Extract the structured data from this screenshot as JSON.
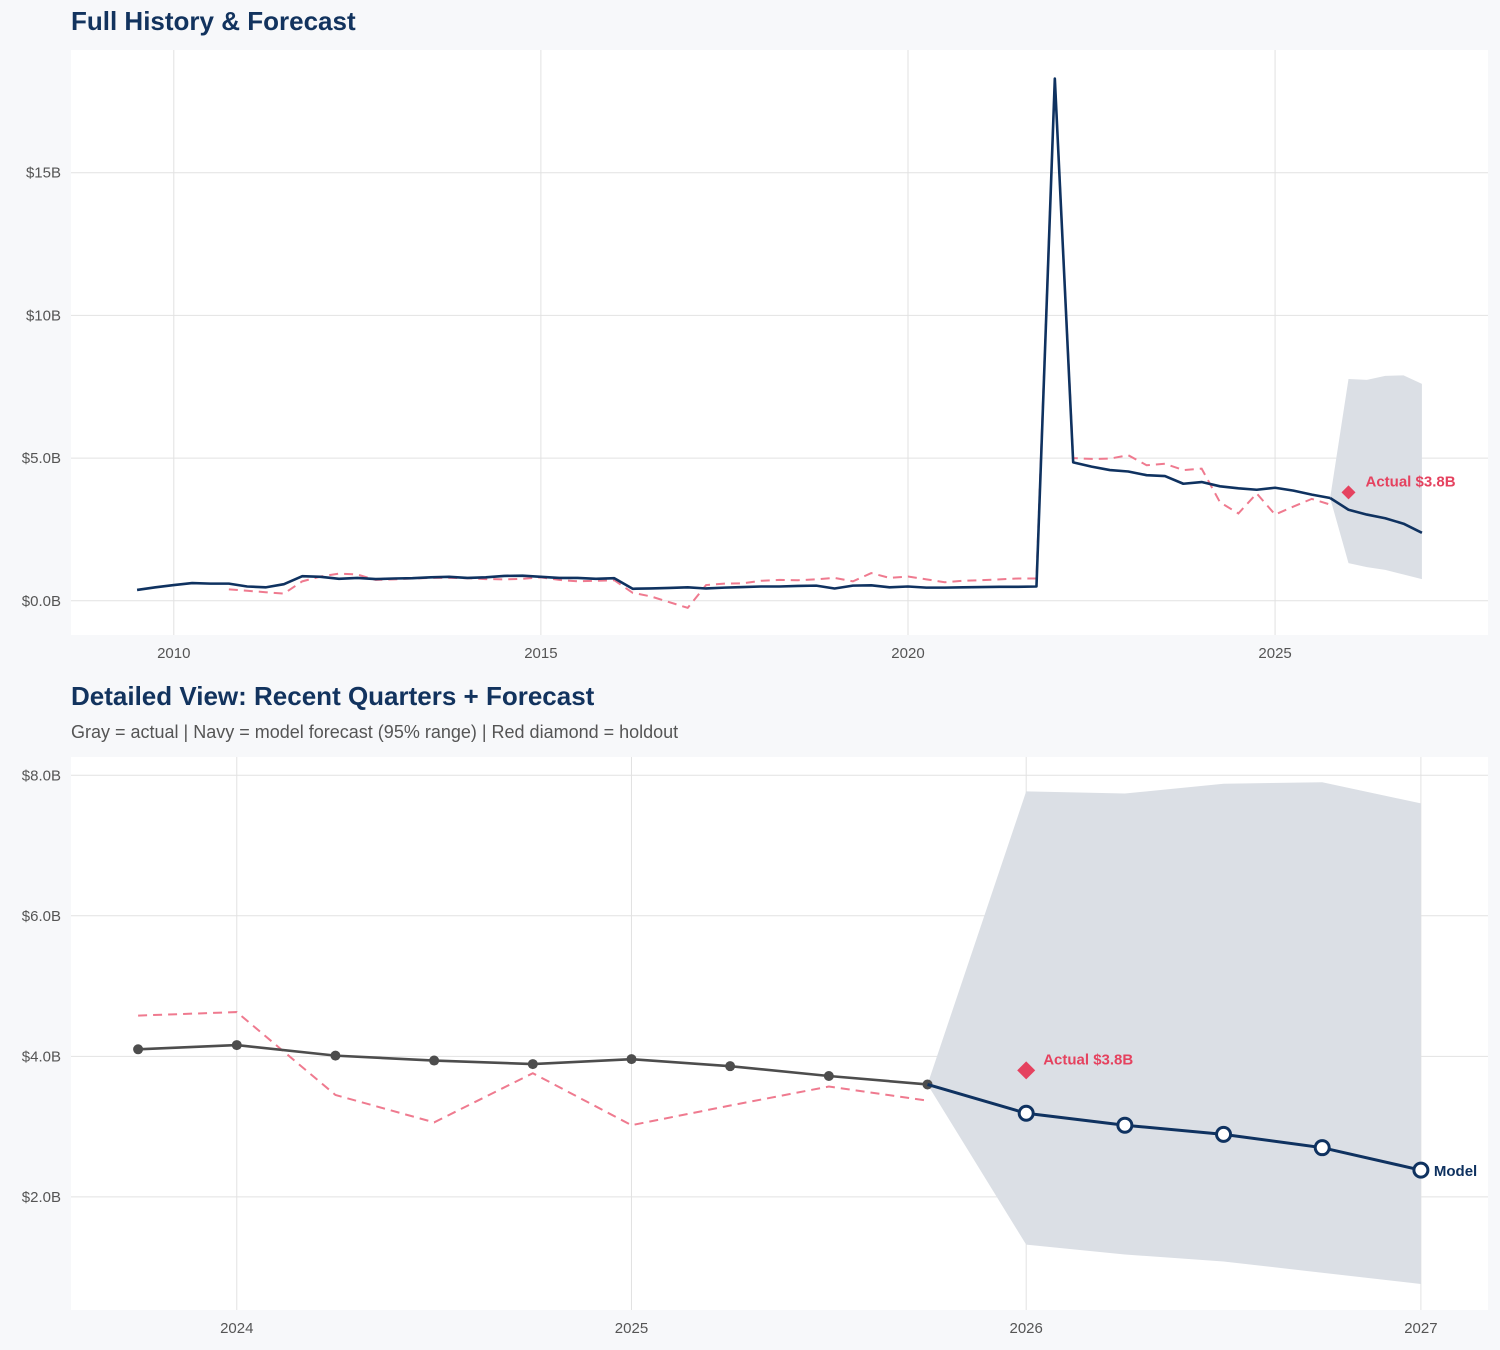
{
  "colors": {
    "navy": "#0f3260",
    "actual_gray": "#4d4d4d",
    "red": "#e5425f",
    "dashed_pink": "#ef7a8f",
    "band": "#dbdfe5",
    "grid": "#e2e2e2",
    "panel": "#ffffff",
    "background": "#f7f8fa"
  },
  "chart_data": [
    {
      "type": "line",
      "title": "Full History & Forecast",
      "xlim": [
        2008.6,
        2027.9
      ],
      "ylim": [
        -1.2,
        19.3
      ],
      "y_unit": "$B",
      "grid": true,
      "x_ticks": [
        2010,
        2015,
        2020,
        2025
      ],
      "x_tick_labels": [
        "2010",
        "2015",
        "2020",
        "2025"
      ],
      "y_ticks": [
        0,
        5,
        10,
        15
      ],
      "y_tick_labels": [
        "$0.0B",
        "$5.0B",
        "$10B",
        "$15B"
      ],
      "history": {
        "x_start": 2009.5,
        "x_step": 0.25,
        "values": [
          0.38,
          0.47,
          0.55,
          0.62,
          0.6,
          0.6,
          0.5,
          0.47,
          0.58,
          0.86,
          0.84,
          0.77,
          0.8,
          0.76,
          0.78,
          0.79,
          0.82,
          0.84,
          0.8,
          0.82,
          0.87,
          0.88,
          0.84,
          0.8,
          0.8,
          0.77,
          0.79,
          0.42,
          0.43,
          0.45,
          0.47,
          0.43,
          0.46,
          0.48,
          0.5,
          0.5,
          0.52,
          0.53,
          0.43,
          0.53,
          0.54,
          0.47,
          0.5,
          0.46,
          0.46,
          0.47,
          0.48,
          0.49,
          0.49,
          0.5,
          18.3,
          4.85,
          4.7,
          4.58,
          4.53,
          4.4,
          4.37,
          4.1,
          4.16,
          4.01,
          3.94,
          3.89,
          3.96,
          3.86,
          3.72,
          3.6
        ]
      },
      "dashed": {
        "x_start": 2010.75,
        "x_step": 0.25,
        "values": [
          0.4,
          0.35,
          0.3,
          0.25,
          0.68,
          0.85,
          0.95,
          0.92,
          0.73,
          0.75,
          0.78,
          0.8,
          0.8,
          0.79,
          0.76,
          0.75,
          0.77,
          0.82,
          0.73,
          0.68,
          0.7,
          0.72,
          0.28,
          0.15,
          -0.05,
          -0.25,
          0.55,
          0.6,
          0.61,
          0.7,
          0.73,
          0.72,
          0.75,
          0.8,
          0.68,
          0.97,
          0.8,
          0.85,
          0.75,
          0.65,
          0.7,
          0.72,
          0.75,
          0.78,
          0.78,
          18.3,
          5.0,
          4.97,
          4.98,
          5.1,
          4.75,
          4.8,
          4.58,
          4.63,
          3.45,
          3.06,
          3.76,
          3.02,
          3.3,
          3.57,
          3.37
        ]
      },
      "forecast": {
        "x": [
          2025.75,
          2026.0,
          2026.25,
          2026.5,
          2026.75,
          2027.0
        ],
        "values": [
          3.6,
          3.19,
          3.02,
          2.89,
          2.7,
          2.38
        ],
        "upper": [
          3.6,
          7.77,
          7.74,
          7.88,
          7.9,
          7.6
        ],
        "lower": [
          3.6,
          1.32,
          1.18,
          1.08,
          0.92,
          0.76
        ]
      },
      "holdout": {
        "x": 2026.0,
        "value": 3.8,
        "label": "Actual $3.8B"
      }
    },
    {
      "type": "line",
      "title": "Detailed View: Recent Quarters + Forecast",
      "subtitle": "Gray = actual  |  Navy = model forecast (95% range)  |  Red diamond = holdout",
      "xlim": [
        2023.58,
        2027.17
      ],
      "ylim": [
        0.39,
        8.26
      ],
      "y_unit": "$B",
      "grid": true,
      "x_ticks": [
        2024,
        2025,
        2026,
        2027
      ],
      "x_tick_labels": [
        "2024",
        "2025",
        "2026",
        "2027"
      ],
      "y_ticks": [
        2,
        4,
        6,
        8
      ],
      "y_tick_labels": [
        "$2.0B",
        "$4.0B",
        "$6.0B",
        "$8.0B"
      ],
      "actual": {
        "x": [
          2023.75,
          2024.0,
          2024.25,
          2024.5,
          2024.75,
          2025.0,
          2025.25,
          2025.5,
          2025.75
        ],
        "values": [
          4.1,
          4.16,
          4.01,
          3.94,
          3.89,
          3.96,
          3.86,
          3.72,
          3.6
        ]
      },
      "dashed": {
        "x": [
          2023.75,
          2024.0,
          2024.25,
          2024.5,
          2024.75,
          2025.0,
          2025.25,
          2025.5,
          2025.75
        ],
        "values": [
          4.58,
          4.63,
          3.45,
          3.06,
          3.76,
          3.02,
          3.3,
          3.57,
          3.37
        ]
      },
      "forecast": {
        "x": [
          2025.75,
          2026.0,
          2026.25,
          2026.5,
          2026.75,
          2027.0
        ],
        "values": [
          3.6,
          3.19,
          3.02,
          2.89,
          2.7,
          2.38
        ],
        "upper": [
          3.6,
          7.77,
          7.74,
          7.88,
          7.9,
          7.6
        ],
        "lower": [
          3.6,
          1.32,
          1.18,
          1.08,
          0.92,
          0.76
        ],
        "end_label": "Model"
      },
      "holdout": {
        "x": 2026.0,
        "value": 3.8,
        "label": "Actual $3.8B"
      }
    }
  ]
}
